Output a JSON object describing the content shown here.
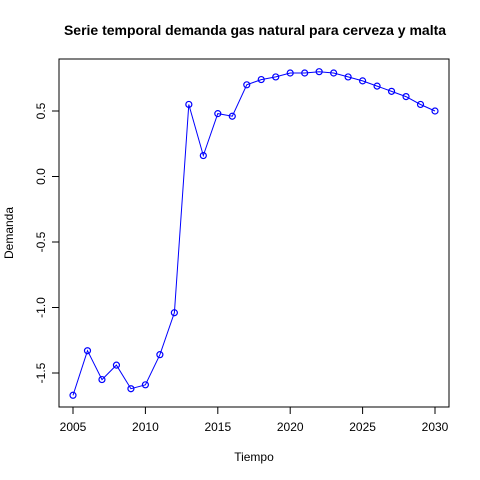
{
  "chart_data": {
    "type": "line",
    "title": "Serie temporal demanda gas natural para cerveza y malta",
    "xlabel": "Tiempo",
    "ylabel": "Demanda",
    "xlim": [
      2005,
      2030
    ],
    "ylim": [
      -1.7,
      0.85
    ],
    "xticks": [
      2005,
      2010,
      2015,
      2020,
      2025,
      2030
    ],
    "yticks": [
      -1.5,
      -1.0,
      -0.5,
      0.0,
      0.5
    ],
    "ytick_labels": [
      "-1.5",
      "-1.0",
      "-0.5",
      "0.0",
      "0.5"
    ],
    "grid": false,
    "color": "#0000ff",
    "x": [
      2005,
      2006,
      2007,
      2008,
      2009,
      2010,
      2011,
      2012,
      2013,
      2014,
      2015,
      2016,
      2017,
      2018,
      2019,
      2020,
      2021,
      2022,
      2023,
      2024,
      2025,
      2026,
      2027,
      2028,
      2029,
      2030
    ],
    "y": [
      -1.67,
      -1.33,
      -1.55,
      -1.44,
      -1.62,
      -1.59,
      -1.36,
      -1.04,
      0.55,
      0.16,
      0.48,
      0.46,
      0.7,
      0.74,
      0.76,
      0.79,
      0.79,
      0.8,
      0.79,
      0.76,
      0.73,
      0.69,
      0.65,
      0.61,
      0.55,
      0.5
    ]
  }
}
